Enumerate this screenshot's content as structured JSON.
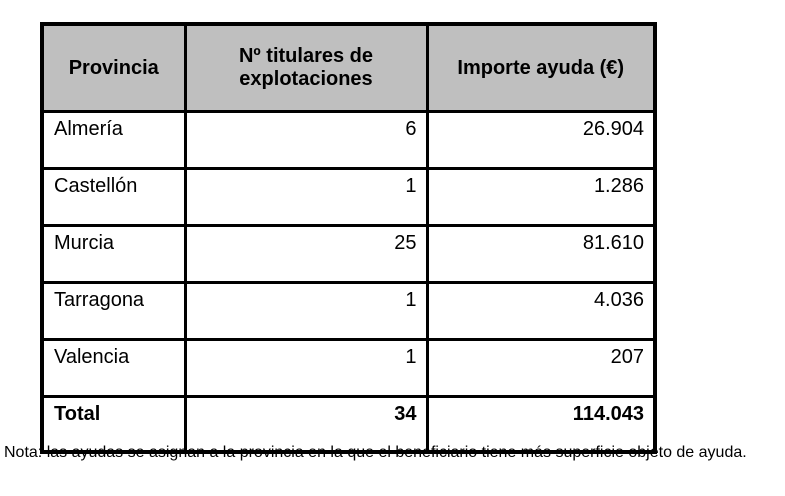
{
  "colors": {
    "header_bg": "#bfbfbf",
    "border": "#000000",
    "text": "#000000",
    "page_bg": "#ffffff"
  },
  "table": {
    "headers": {
      "provincia": "Provincia",
      "titulares": "Nº titulares de explotaciones",
      "importe": "Importe ayuda (€)"
    },
    "rows": [
      {
        "provincia": "Almería",
        "titulares": "6",
        "importe": "26.904"
      },
      {
        "provincia": "Castellón",
        "titulares": "1",
        "importe": "1.286"
      },
      {
        "provincia": "Murcia",
        "titulares": "25",
        "importe": "81.610"
      },
      {
        "provincia": "Tarragona",
        "titulares": "1",
        "importe": "4.036"
      },
      {
        "provincia": "Valencia",
        "titulares": "1",
        "importe": "207"
      }
    ],
    "total": {
      "provincia": "Total",
      "titulares": "34",
      "importe": "114.043"
    }
  },
  "note": "Nota: las ayudas se asignan a la provincia en la que el beneficiario tiene más superficie objeto de ayuda."
}
